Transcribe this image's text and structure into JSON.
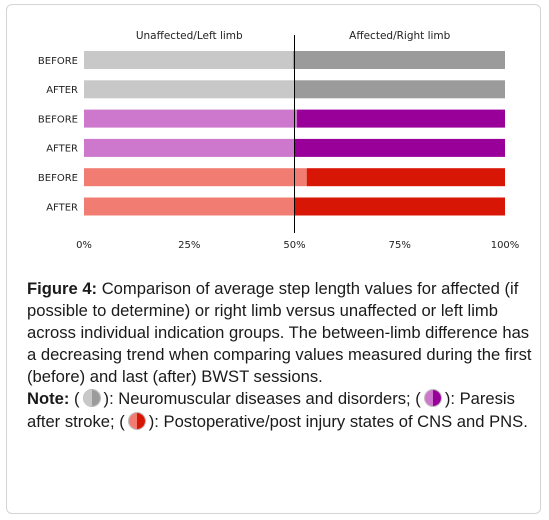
{
  "chart_data": {
    "type": "bar",
    "orientation": "horizontal",
    "stacked": true,
    "column_headers": [
      "Unaffected/Left limb",
      "Affected/Right limb"
    ],
    "categories": [
      "BEFORE",
      "AFTER",
      "BEFORE",
      "AFTER",
      "BEFORE",
      "AFTER"
    ],
    "groups": [
      {
        "key_icon": "grey-circle-icon",
        "colors": [
          "#c8c8c8",
          "#9b9b9b"
        ],
        "left_percent": [
          49.6,
          49.9
        ]
      },
      {
        "key_icon": "purple-circle-icon",
        "colors": [
          "#cd78cd",
          "#99009a"
        ],
        "left_percent": [
          50.6,
          50.1
        ]
      },
      {
        "key_icon": "red-circle-icon",
        "colors": [
          "#f07c72",
          "#d81606"
        ],
        "left_percent": [
          52.9,
          50.1
        ]
      }
    ],
    "xticks": [
      "0%",
      "25%",
      "50%",
      "75%",
      "100%"
    ],
    "xlim": [
      0,
      100
    ],
    "reference_line": 50,
    "grid": false
  },
  "caption": {
    "label": "Figure 4:",
    "text": "Comparison of average step length values for affected (if possible to determine) or right limb versus unaffected or left limb across individual indication groups. The between-limb difference has a decreasing trend when comparing values measured during the first (before) and last (after) BWST sessions."
  },
  "note": {
    "label": "Note:",
    "entries": [
      {
        "icon": "grey-circle-icon",
        "text": "Neuromuscular diseases and disorders;"
      },
      {
        "icon": "purple-circle-icon",
        "text": "Paresis after stroke;"
      },
      {
        "icon": "red-circle-icon",
        "text": "Postoperative/post injury states of CNS and PNS."
      }
    ]
  }
}
